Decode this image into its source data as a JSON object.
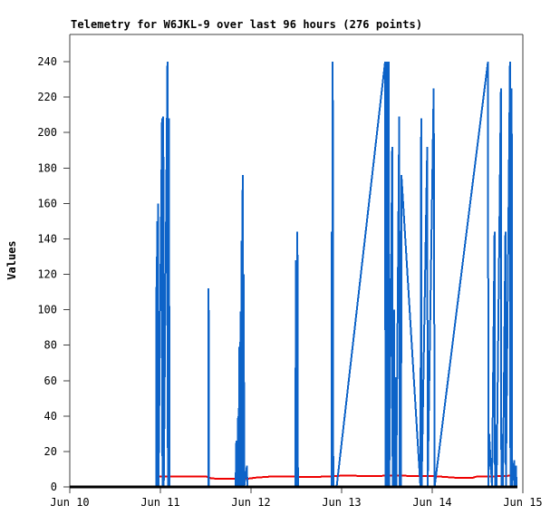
{
  "chart_data": {
    "type": "line",
    "title": "Telemetry for W6JKL-9 over last 96 hours (276 points)",
    "ylabel": "Values",
    "xlabel": "",
    "grid": false,
    "legend": "none",
    "x_tick_labels": [
      "Jun 10",
      "Jun 11",
      "Jun 12",
      "Jun 13",
      "Jun 14",
      "Jun 15"
    ],
    "y_ticks": [
      0,
      20,
      40,
      60,
      80,
      100,
      120,
      140,
      160,
      180,
      200,
      220,
      240
    ],
    "x_range_days": [
      0,
      5
    ],
    "ylim": [
      0,
      255
    ],
    "colors": {
      "frame": "#404040",
      "text": "#000000"
    },
    "series": [
      {
        "name": "red-channel",
        "color": "#ee0000",
        "width": 2,
        "points": [
          [
            0.99,
            6
          ],
          [
            1.3,
            6
          ],
          [
            1.5,
            6
          ],
          [
            1.56,
            4.8
          ],
          [
            1.7,
            4.5
          ],
          [
            1.95,
            4.5
          ],
          [
            2.05,
            5.2
          ],
          [
            2.2,
            5.8
          ],
          [
            2.35,
            6
          ],
          [
            2.6,
            5.6
          ],
          [
            2.8,
            5.8
          ],
          [
            2.95,
            6.2
          ],
          [
            3.05,
            6.5
          ],
          [
            3.2,
            6.2
          ],
          [
            3.4,
            6.2
          ],
          [
            3.6,
            6.5
          ],
          [
            3.75,
            6.2
          ],
          [
            3.95,
            6.2
          ],
          [
            4.1,
            5.8
          ],
          [
            4.25,
            5.2
          ],
          [
            4.45,
            5.2
          ],
          [
            4.5,
            6
          ],
          [
            4.7,
            6
          ],
          [
            4.85,
            6.3
          ],
          [
            4.92,
            6
          ]
        ]
      },
      {
        "name": "blue-channel",
        "color": "#0d63c8",
        "width": 2,
        "points": [
          [
            0.955,
            0
          ],
          [
            0.958,
            130
          ],
          [
            0.962,
            0
          ],
          [
            0.966,
            150
          ],
          [
            0.97,
            45
          ],
          [
            0.974,
            160
          ],
          [
            0.979,
            0
          ],
          [
            1.018,
            208
          ],
          [
            1.023,
            0
          ],
          [
            1.032,
            209
          ],
          [
            1.037,
            0
          ],
          [
            1.078,
            240
          ],
          [
            1.083,
            0
          ],
          [
            1.095,
            208
          ],
          [
            1.1,
            0
          ],
          [
            1.528,
            0
          ],
          [
            1.532,
            112
          ],
          [
            1.537,
            0
          ],
          [
            1.83,
            0
          ],
          [
            1.838,
            26
          ],
          [
            1.843,
            0
          ],
          [
            1.858,
            40
          ],
          [
            1.862,
            0
          ],
          [
            1.872,
            79
          ],
          [
            1.876,
            0
          ],
          [
            1.884,
            99
          ],
          [
            1.888,
            0
          ],
          [
            1.896,
            139
          ],
          [
            1.9,
            0
          ],
          [
            1.908,
            176
          ],
          [
            1.914,
            0
          ],
          [
            1.92,
            120
          ],
          [
            1.925,
            0
          ],
          [
            1.955,
            12
          ],
          [
            1.96,
            0
          ],
          [
            2.49,
            0
          ],
          [
            2.495,
            128
          ],
          [
            2.5,
            0
          ],
          [
            2.512,
            144
          ],
          [
            2.518,
            0
          ],
          [
            2.888,
            0
          ],
          [
            2.892,
            144
          ],
          [
            2.896,
            0
          ],
          [
            2.902,
            240
          ],
          [
            2.908,
            0
          ],
          [
            2.945,
            0
          ],
          [
            3.48,
            240
          ],
          [
            3.484,
            0
          ],
          [
            3.488,
            240
          ],
          [
            3.492,
            0
          ],
          [
            3.496,
            240
          ],
          [
            3.5,
            0
          ],
          [
            3.504,
            240
          ],
          [
            3.508,
            0
          ],
          [
            3.512,
            240
          ],
          [
            3.516,
            0
          ],
          [
            3.52,
            240
          ],
          [
            3.525,
            0
          ],
          [
            3.558,
            192
          ],
          [
            3.563,
            0
          ],
          [
            3.578,
            100
          ],
          [
            3.583,
            0
          ],
          [
            3.598,
            62
          ],
          [
            3.603,
            0
          ],
          [
            3.636,
            209
          ],
          [
            3.641,
            0
          ],
          [
            3.656,
            0
          ],
          [
            3.66,
            176
          ],
          [
            3.87,
            0
          ],
          [
            3.878,
            208
          ],
          [
            3.883,
            0
          ],
          [
            3.945,
            192
          ],
          [
            3.95,
            0
          ],
          [
            4.016,
            225
          ],
          [
            4.02,
            160
          ],
          [
            4.026,
            0
          ],
          [
            4.615,
            240
          ],
          [
            4.62,
            0
          ],
          [
            4.628,
            30
          ],
          [
            4.66,
            0
          ],
          [
            4.688,
            144
          ],
          [
            4.693,
            0
          ],
          [
            4.705,
            35
          ],
          [
            4.71,
            0
          ],
          [
            4.758,
            225
          ],
          [
            4.763,
            0
          ],
          [
            4.775,
            30
          ],
          [
            4.78,
            0
          ],
          [
            4.808,
            144
          ],
          [
            4.813,
            0
          ],
          [
            4.858,
            240
          ],
          [
            4.863,
            0
          ],
          [
            4.872,
            20
          ],
          [
            4.877,
            225
          ],
          [
            4.882,
            0
          ],
          [
            4.905,
            15
          ],
          [
            4.91,
            0
          ],
          [
            4.925,
            12
          ],
          [
            4.93,
            0
          ]
        ]
      },
      {
        "name": "black-channel",
        "color": "#000000",
        "width": 3,
        "points": [
          [
            0.0,
            0
          ],
          [
            4.94,
            0
          ]
        ]
      }
    ]
  }
}
